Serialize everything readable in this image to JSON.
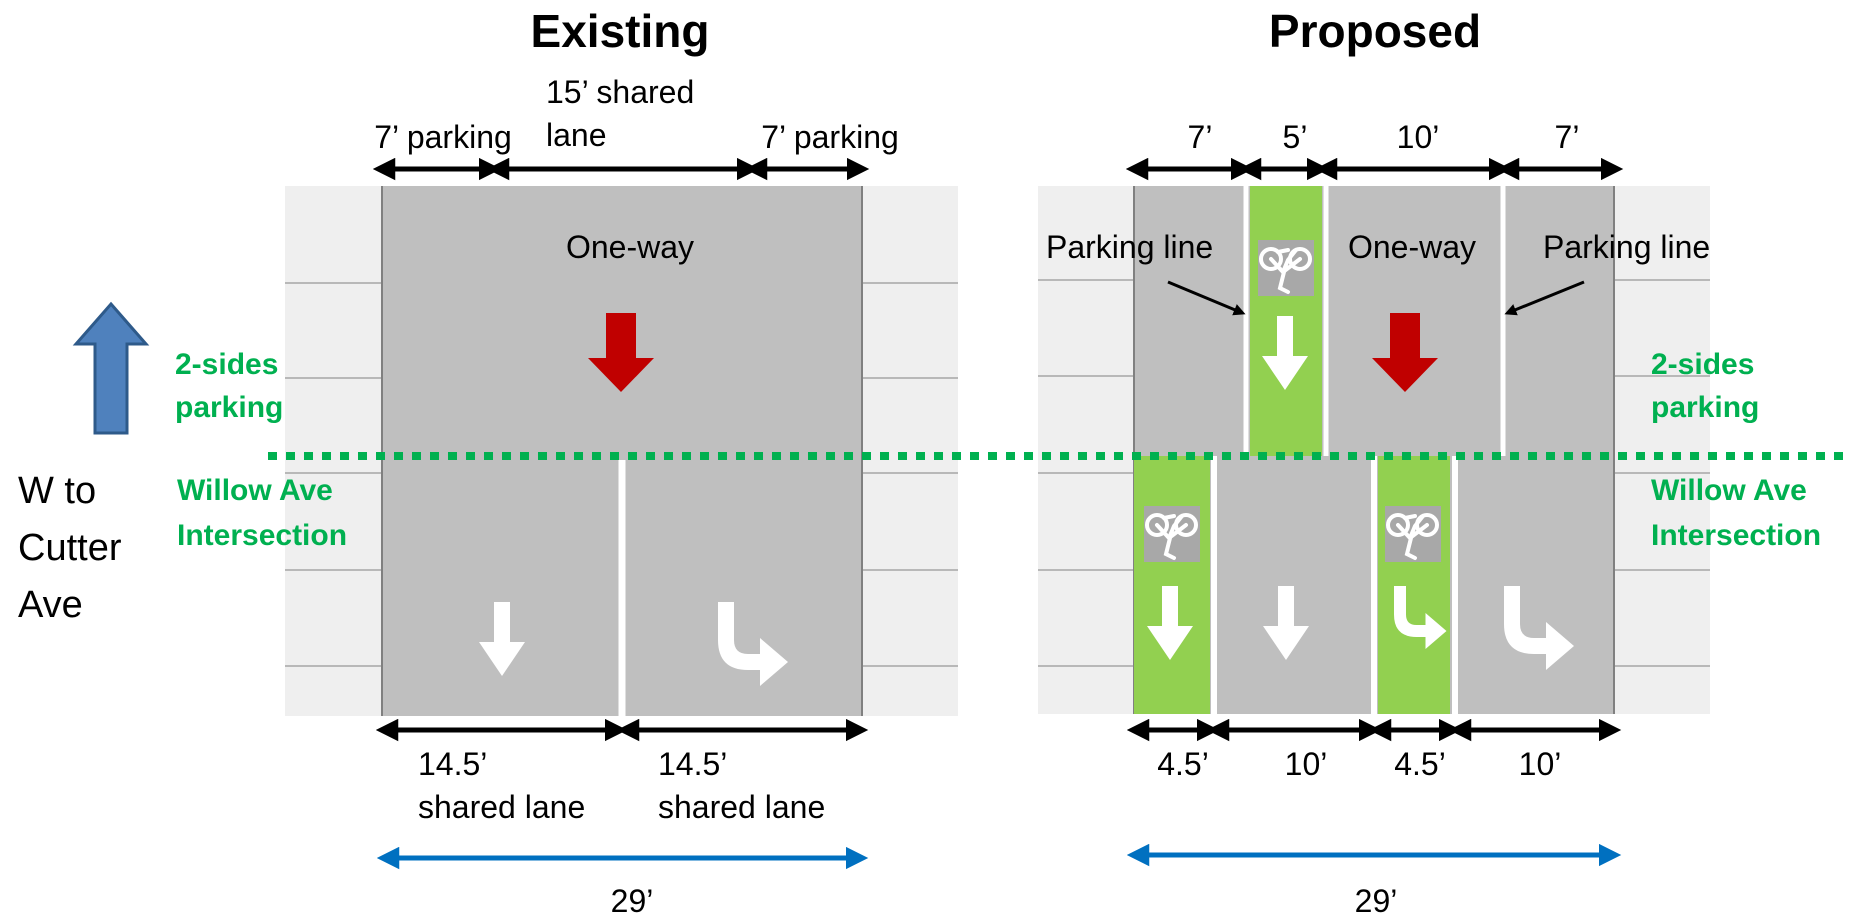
{
  "existing": {
    "title": "Existing",
    "top_labels": {
      "parking_left": "7’ parking",
      "lane_line1": "15’ shared",
      "lane_line2": "lane",
      "parking_right": "7’ parking"
    },
    "direction_text": "One-way",
    "bottom_labels": [
      {
        "dim": "14.5’",
        "desc": "shared lane"
      },
      {
        "dim": "14.5’",
        "desc": "shared lane"
      }
    ],
    "total_width": "29’"
  },
  "proposed": {
    "title": "Proposed",
    "top_labels": [
      "7’",
      "5’",
      "10’",
      "7’"
    ],
    "parking_line_left": "Parking line",
    "parking_line_right": "Parking line",
    "direction_text": "One-way",
    "bottom_labels": [
      "4.5’",
      "10’",
      "4.5’",
      "10’"
    ],
    "total_width": "29’"
  },
  "annotations": {
    "parking_line1": "2-sides",
    "parking_line2": "parking",
    "intersection_line1": "Willow Ave",
    "intersection_line2": "Intersection",
    "side_line1": "W to",
    "side_line2": "Cutter",
    "side_line3": "Ave"
  },
  "colors": {
    "road": "#bfbfbf",
    "sidewalk": "#efefef",
    "bike_lane": "#92d050",
    "annotation_green": "#00b050",
    "red_arrow": "#c00000",
    "blue_arrow": "#4f81bd",
    "dimension_blue": "#0070c0"
  },
  "icons": [
    "north-arrow-icon",
    "red-down-arrow-icon",
    "bicycle-icon",
    "white-down-arrow-icon",
    "white-right-turn-arrow-icon"
  ]
}
